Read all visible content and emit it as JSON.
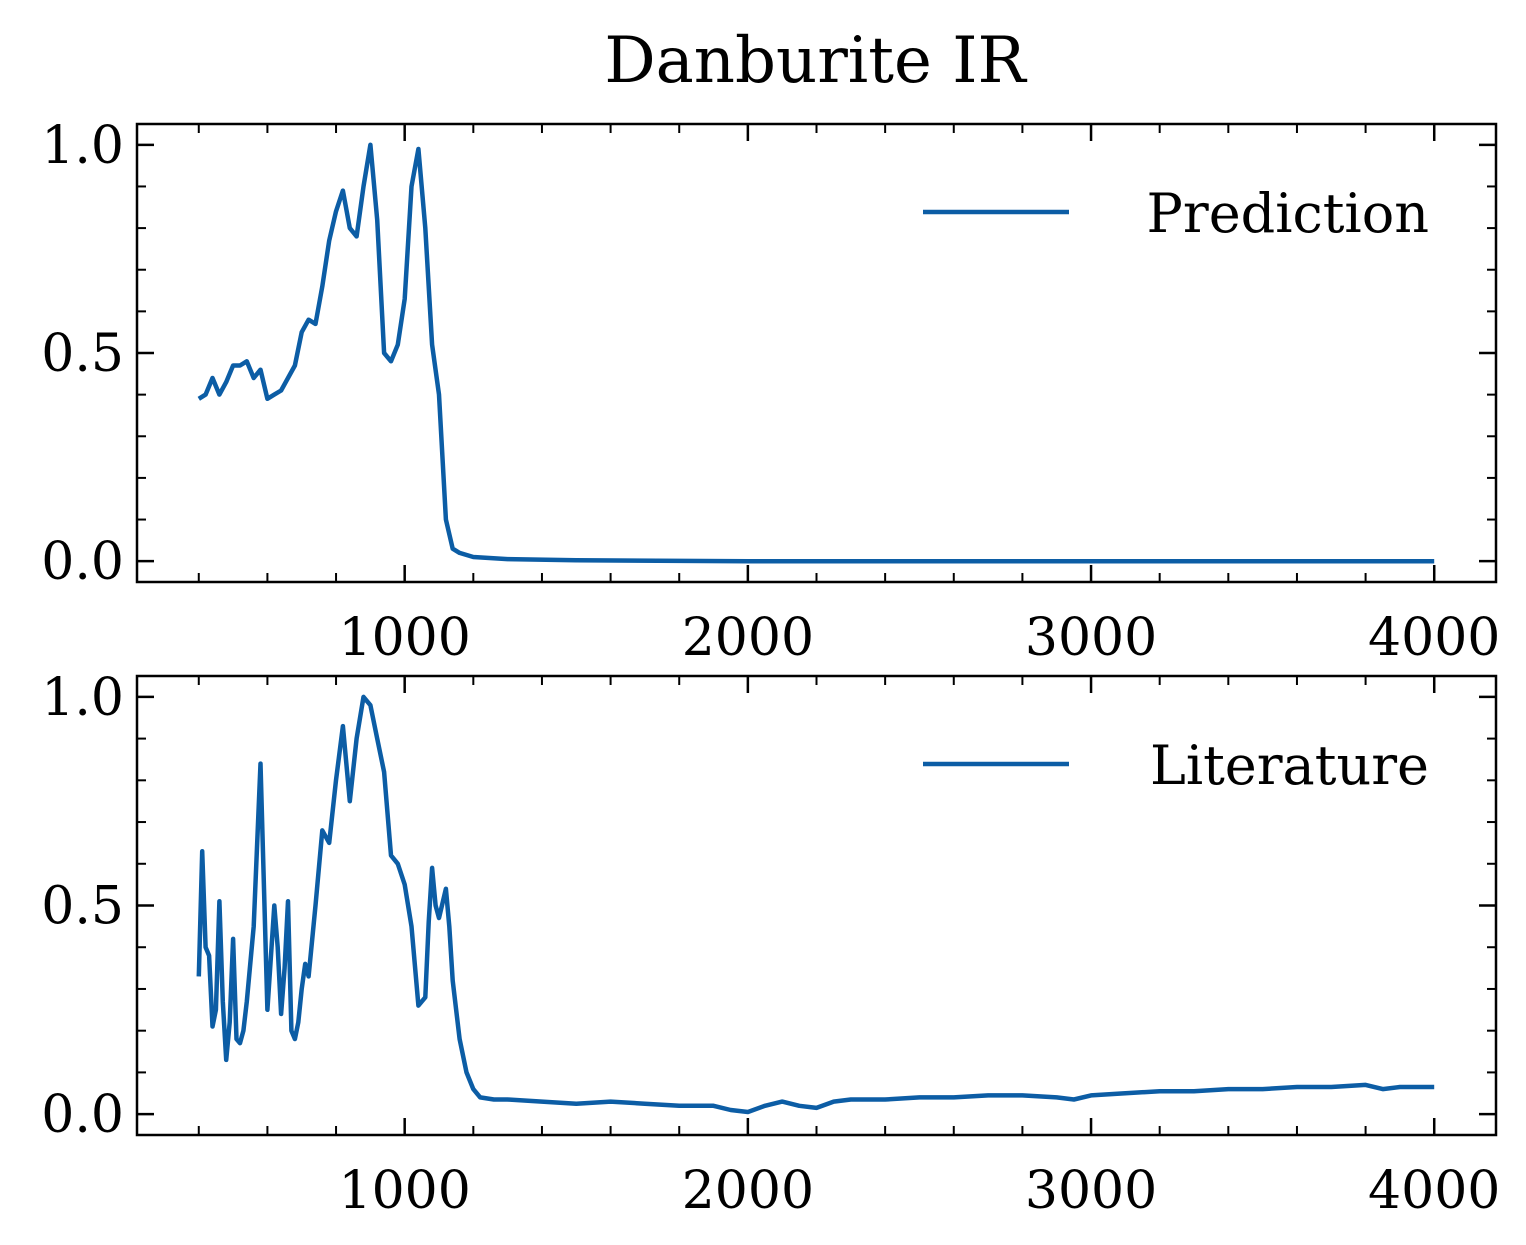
{
  "title": "Danburite IR",
  "line_color": "#0C5DA5",
  "chart_data": [
    {
      "type": "line",
      "legend_position": "top-right",
      "xlim": [
        220,
        4180
      ],
      "ylim": [
        -0.05,
        1.05
      ],
      "xticks": [
        1000,
        2000,
        3000,
        4000
      ],
      "yticks": [
        0.0,
        0.5,
        1.0
      ],
      "xtick_labels": [
        "1000",
        "2000",
        "3000",
        "4000"
      ],
      "ytick_labels": [
        "0.0",
        "0.5",
        "1.0"
      ],
      "series": [
        {
          "name": "Prediction",
          "x": [
            400,
            420,
            440,
            460,
            480,
            500,
            520,
            540,
            560,
            580,
            600,
            620,
            640,
            660,
            680,
            700,
            720,
            740,
            760,
            780,
            800,
            820,
            840,
            860,
            880,
            900,
            920,
            940,
            960,
            980,
            1000,
            1020,
            1040,
            1060,
            1080,
            1100,
            1120,
            1140,
            1160,
            1200,
            1300,
            1500,
            2000,
            2500,
            3000,
            3500,
            4000
          ],
          "values": [
            0.39,
            0.4,
            0.44,
            0.4,
            0.43,
            0.47,
            0.47,
            0.48,
            0.44,
            0.46,
            0.39,
            0.4,
            0.41,
            0.44,
            0.47,
            0.55,
            0.58,
            0.57,
            0.66,
            0.77,
            0.84,
            0.89,
            0.8,
            0.78,
            0.9,
            1.0,
            0.82,
            0.5,
            0.48,
            0.52,
            0.63,
            0.9,
            0.99,
            0.8,
            0.52,
            0.4,
            0.1,
            0.03,
            0.02,
            0.01,
            0.005,
            0.002,
            0.0,
            0.0,
            0.0,
            0.0,
            0.0
          ]
        }
      ]
    },
    {
      "type": "line",
      "legend_position": "top-right",
      "xlim": [
        220,
        4180
      ],
      "ylim": [
        -0.05,
        1.05
      ],
      "xticks": [
        1000,
        2000,
        3000,
        4000
      ],
      "yticks": [
        0.0,
        0.5,
        1.0
      ],
      "xtick_labels": [
        "1000",
        "2000",
        "3000",
        "4000"
      ],
      "ytick_labels": [
        "0.0",
        "0.5",
        "1.0"
      ],
      "series": [
        {
          "name": "Literature",
          "x": [
            400,
            410,
            420,
            430,
            440,
            450,
            460,
            470,
            480,
            490,
            500,
            510,
            520,
            530,
            540,
            560,
            580,
            600,
            620,
            630,
            640,
            650,
            660,
            670,
            680,
            690,
            700,
            710,
            720,
            740,
            760,
            780,
            800,
            820,
            840,
            860,
            880,
            900,
            920,
            940,
            960,
            980,
            1000,
            1020,
            1040,
            1060,
            1070,
            1080,
            1090,
            1100,
            1120,
            1130,
            1140,
            1160,
            1180,
            1200,
            1220,
            1260,
            1300,
            1400,
            1500,
            1600,
            1700,
            1800,
            1900,
            1950,
            2000,
            2050,
            2100,
            2150,
            2200,
            2250,
            2300,
            2400,
            2500,
            2600,
            2700,
            2800,
            2900,
            2950,
            3000,
            3100,
            3200,
            3300,
            3400,
            3500,
            3600,
            3700,
            3800,
            3850,
            3900,
            4000
          ],
          "values": [
            0.33,
            0.63,
            0.4,
            0.38,
            0.21,
            0.25,
            0.51,
            0.27,
            0.13,
            0.22,
            0.42,
            0.18,
            0.17,
            0.2,
            0.27,
            0.45,
            0.84,
            0.25,
            0.5,
            0.4,
            0.24,
            0.35,
            0.51,
            0.2,
            0.18,
            0.22,
            0.3,
            0.36,
            0.33,
            0.5,
            0.68,
            0.65,
            0.8,
            0.93,
            0.75,
            0.9,
            1.0,
            0.98,
            0.9,
            0.82,
            0.62,
            0.6,
            0.55,
            0.45,
            0.26,
            0.28,
            0.46,
            0.59,
            0.5,
            0.47,
            0.54,
            0.45,
            0.32,
            0.18,
            0.1,
            0.06,
            0.04,
            0.035,
            0.035,
            0.03,
            0.025,
            0.03,
            0.025,
            0.02,
            0.02,
            0.01,
            0.005,
            0.02,
            0.03,
            0.02,
            0.015,
            0.03,
            0.035,
            0.035,
            0.04,
            0.04,
            0.045,
            0.045,
            0.04,
            0.035,
            0.045,
            0.05,
            0.055,
            0.055,
            0.06,
            0.06,
            0.065,
            0.065,
            0.07,
            0.06,
            0.065,
            0.065
          ]
        }
      ]
    }
  ]
}
